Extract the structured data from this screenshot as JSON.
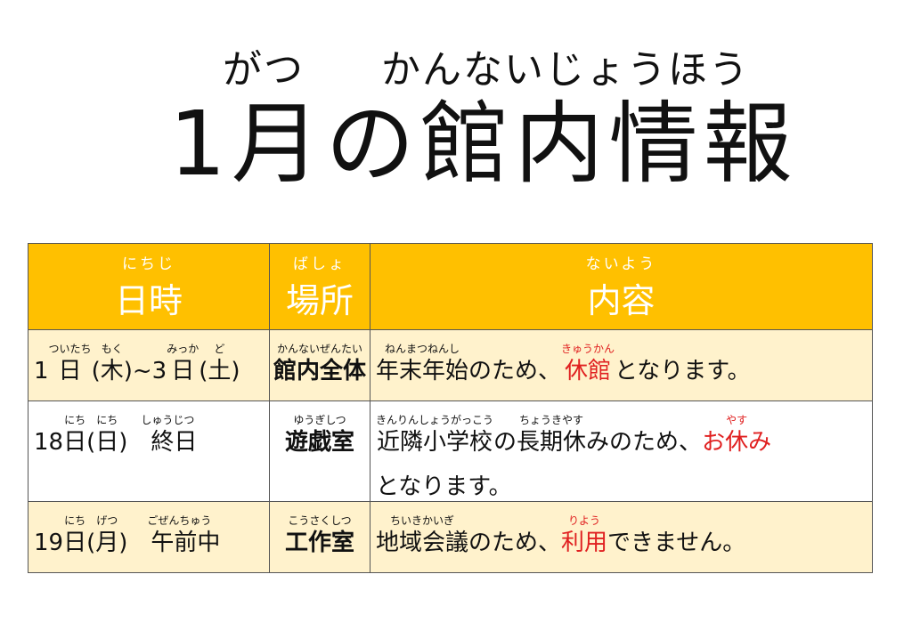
{
  "title": {
    "ruby_month": "がつ",
    "ruby_rest": "かんないじょうほう",
    "text": "1月の館内情報"
  },
  "table": {
    "headers": [
      {
        "ruby": "にちじ",
        "label": "日時"
      },
      {
        "ruby": "ばしょ",
        "label": "場所"
      },
      {
        "ruby": "ないよう",
        "label": "内容"
      }
    ],
    "rows": [
      {
        "date": [
          {
            "text": "1",
            "ruby": ""
          },
          {
            "text": "日",
            "ruby": "ついたち"
          },
          {
            "text": "(木)",
            "ruby": "もく"
          },
          {
            "text": "~3",
            "ruby": ""
          },
          {
            "text": "日",
            "ruby": "みっか"
          },
          {
            "text": "(土)",
            "ruby": "ど"
          }
        ],
        "place": {
          "text": "館内全体",
          "ruby": "かんないぜんたい"
        },
        "content": [
          {
            "text": "年末年始",
            "ruby": "ねんまつねんし",
            "red": false
          },
          {
            "text": "のため、",
            "ruby": "",
            "red": false
          },
          {
            "text": "休館",
            "ruby": "きゅうかん",
            "red": true
          },
          {
            "text": "となります。",
            "ruby": "",
            "red": false
          }
        ]
      },
      {
        "date": [
          {
            "text": "18",
            "ruby": ""
          },
          {
            "text": "日",
            "ruby": "にち"
          },
          {
            "text": "(日)",
            "ruby": "にち"
          },
          {
            "text": "　終日",
            "ruby": "　しゅうじつ"
          }
        ],
        "place": {
          "text": "遊戯室",
          "ruby": "ゆうぎしつ"
        },
        "content": [
          {
            "text": "近隣小学校",
            "ruby": "きんりんしょうがっこう",
            "red": false
          },
          {
            "text": "の",
            "ruby": "",
            "red": false
          },
          {
            "text": "長期休",
            "ruby": "ちょうきやす",
            "red": false
          },
          {
            "text": "みのため、",
            "ruby": "",
            "red": false
          },
          {
            "text": "お",
            "ruby": "",
            "red": true
          },
          {
            "text": "休",
            "ruby": "やす",
            "red": true
          },
          {
            "text": "み",
            "ruby": "",
            "red": true
          },
          {
            "text": "となります。",
            "ruby": "",
            "red": false
          }
        ]
      },
      {
        "date": [
          {
            "text": "19",
            "ruby": ""
          },
          {
            "text": "日",
            "ruby": "にち"
          },
          {
            "text": "(月)",
            "ruby": "げつ"
          },
          {
            "text": "　午前中",
            "ruby": "　ごぜんちゅう"
          }
        ],
        "place": {
          "text": "工作室",
          "ruby": "こうさくしつ"
        },
        "content": [
          {
            "text": "地域会議",
            "ruby": "ちいきかいぎ",
            "red": false
          },
          {
            "text": "のため、",
            "ruby": "",
            "red": false
          },
          {
            "text": "利用",
            "ruby": "りよう",
            "red": true
          },
          {
            "text": "できません。",
            "ruby": "",
            "red": false
          }
        ]
      }
    ]
  },
  "colors": {
    "header": "#FFC000",
    "row": "#FFF2CC",
    "emphasis": "#E02020"
  }
}
